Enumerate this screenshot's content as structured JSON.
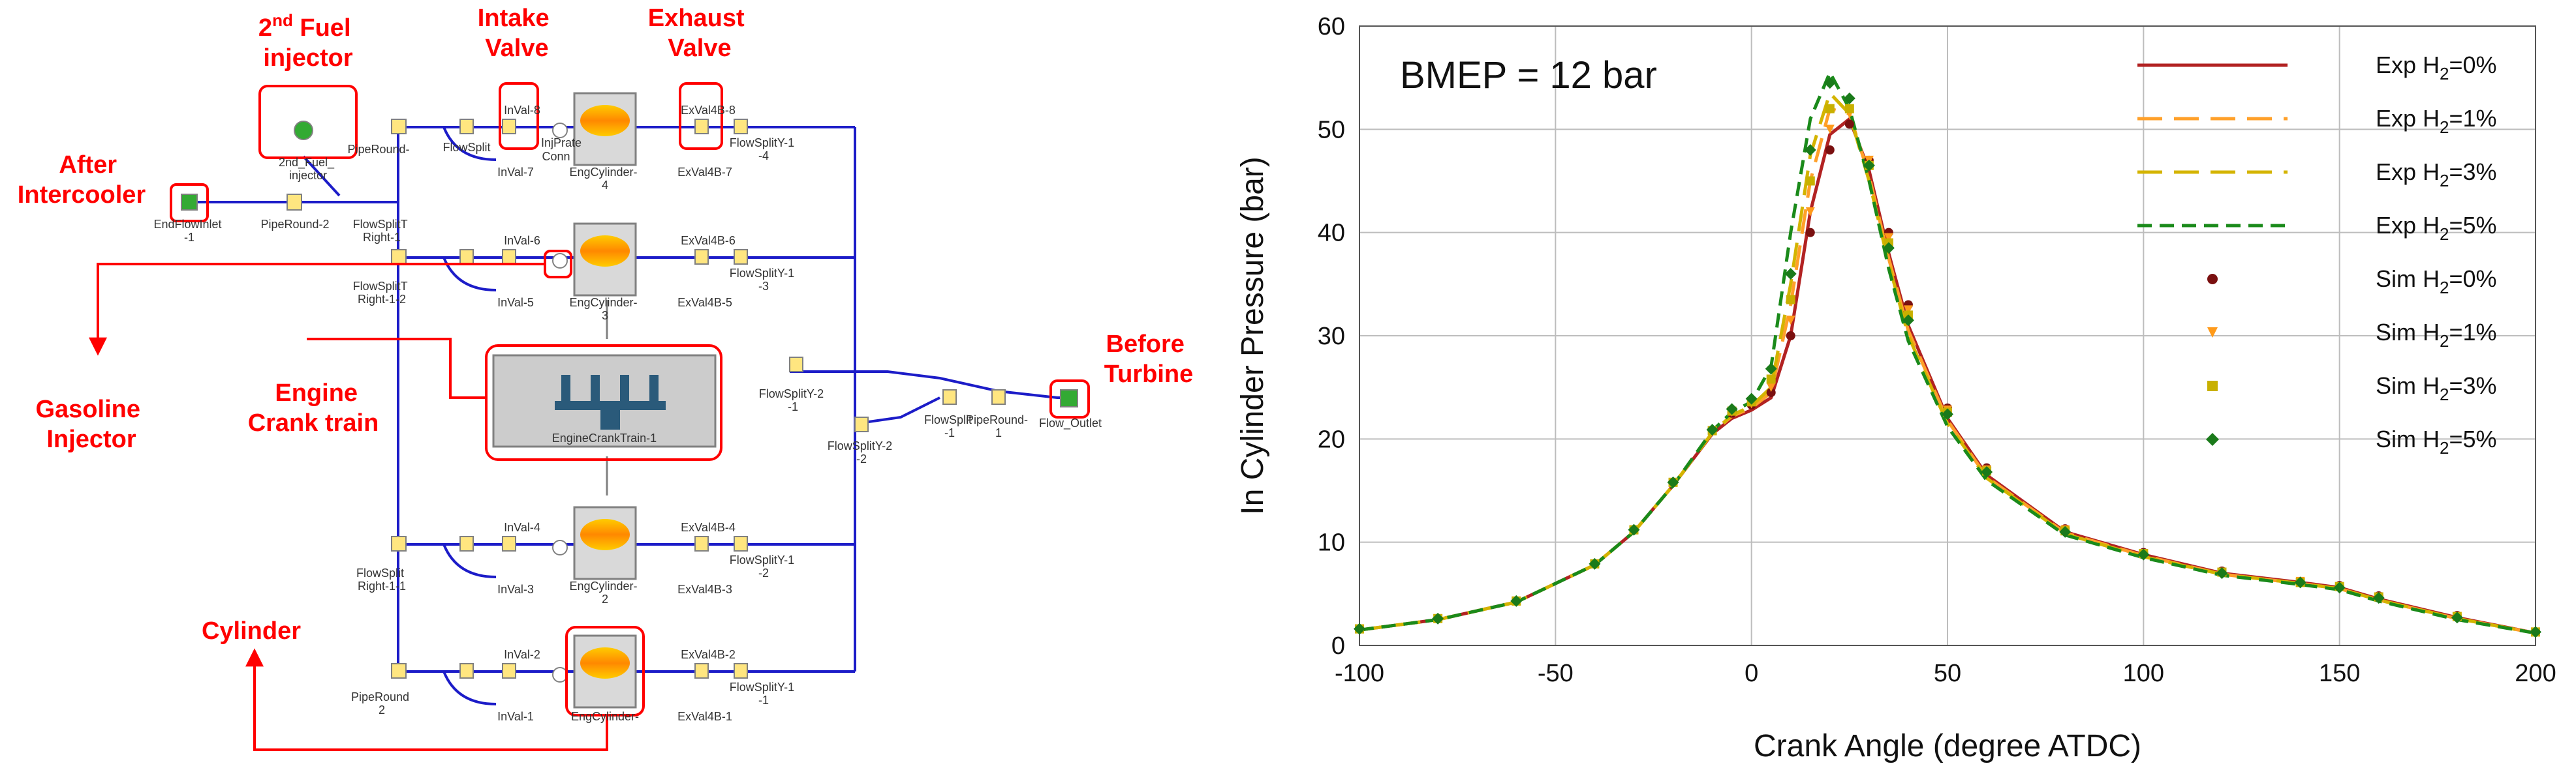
{
  "diagram": {
    "callouts": {
      "fuel_injector_2nd": [
        "2",
        "nd",
        " Fuel",
        "injector"
      ],
      "intake_valve": [
        "Intake",
        "Valve"
      ],
      "exhaust_valve": [
        "Exhaust",
        "Valve"
      ],
      "after_intercooler": [
        "After",
        "Intercooler"
      ],
      "gasoline_injector": [
        "Gasoline",
        "Injector"
      ],
      "engine_crank_train": [
        "Engine",
        "Crank train"
      ],
      "before_turbine": [
        "Before",
        "Turbine"
      ],
      "cylinder": "Cylinder"
    },
    "node_labels": {
      "fuel_injector_box": [
        "2nd_Fuel_",
        "injector"
      ],
      "end_flow_inlet": [
        "EndFlowInlet",
        "-1"
      ],
      "pipe_round_2": "PipeRound-2",
      "pipe_round_top": "PipeRound-",
      "flow_split_t": [
        "FlowSplitT",
        "Right-1"
      ],
      "flow_split_right_1_2": [
        "FlowSplitT",
        "Right-1-2"
      ],
      "flow_split_right_1_1": [
        "FlowSplit",
        "Right-1-1"
      ],
      "pipe_round_bottom": [
        "PipeRound",
        "2"
      ],
      "flowsplit_row1": "FlowSplit",
      "inval_8": "InVal-8",
      "inval_7": "InVal-7",
      "injprate_1": "InjPrate",
      "conn_1": "Conn",
      "engcyl_1": [
        "EngCylinder-",
        "4"
      ],
      "exval4b_8": "ExVal4B-8",
      "exval4b_7": "ExVal4B-7",
      "flowsplity_1_top": [
        "FlowSplitY-1",
        "-4"
      ],
      "inval_6": "InVal-6",
      "inval_5": "InVal-5",
      "engcyl_2": [
        "EngCylinder-",
        "3"
      ],
      "exval4b_6": "ExVal4B-6",
      "exval4b_5": "ExVal4B-5",
      "flowsplity_1_row2": [
        "FlowSplitY-1",
        "-3"
      ],
      "crank_train": "EngineCrankTrain-1",
      "flowsplity_2_a": [
        "FlowSplitY-2",
        "-1"
      ],
      "flowsplity_2_b": [
        "FlowSplitY-2",
        "-2"
      ],
      "flowsplit_merge": [
        "FlowSplit",
        "-1"
      ],
      "pipe_round_out": [
        "PipeRound-",
        "1"
      ],
      "endflow_outlet": "Flow_Outlet",
      "inval_4": "InVal-4",
      "inval_3": "InVal-3",
      "engcyl_3": [
        "EngCylinder-",
        "2"
      ],
      "exval4b_4": "ExVal4B-4",
      "exval4b_3": "ExVal4B-3",
      "flowsplity_1_row3": [
        "FlowSplitY-1",
        "-2"
      ],
      "inval_2": "InVal-2",
      "inval_1": "InVal-1",
      "engcyl_4": "EngCylinder-",
      "exval4b_2": "ExVal4B-2",
      "exval4b_1": "ExVal4B-1",
      "flowsplity_1_row4": [
        "FlowSplitY-1",
        "-1"
      ]
    },
    "colors": {
      "callout": "#ff0000",
      "connector": "#1c1cc8",
      "node_border": "#808080"
    }
  },
  "chart_data": {
    "type": "line",
    "annotation": "BMEP = 12 bar",
    "xlabel": "Crank Angle (degree ATDC)",
    "ylabel": "In Cylinder Pressure (bar)",
    "xlim": [
      -100,
      200
    ],
    "ylim": [
      0,
      60
    ],
    "xticks": [
      -100,
      -50,
      0,
      50,
      100,
      150,
      200
    ],
    "yticks": [
      0,
      10,
      20,
      30,
      40,
      50,
      60
    ],
    "grid": true,
    "legend_position": "top-right",
    "series": [
      {
        "name": "Exp H2=0%",
        "legend": [
          "Exp H",
          "2",
          "=0%"
        ],
        "kind": "line",
        "dash": "solid",
        "color": "#b22222",
        "x": [
          -100,
          -80,
          -60,
          -40,
          -30,
          -20,
          -10,
          -5,
          0,
          5,
          10,
          15,
          20,
          25,
          30,
          35,
          40,
          50,
          60,
          80,
          100,
          120,
          140,
          150,
          160,
          180,
          200
        ],
        "y": [
          1.5,
          2.5,
          4.2,
          7.8,
          11.0,
          15.5,
          20.5,
          22.0,
          22.8,
          24.0,
          30.0,
          42.0,
          49.5,
          51.0,
          46.0,
          38.0,
          31.0,
          22.0,
          16.5,
          11.0,
          8.8,
          7.0,
          6.1,
          5.6,
          4.5,
          2.7,
          1.2
        ]
      },
      {
        "name": "Exp H2=1%",
        "legend": [
          "Exp H",
          "2",
          "=1%"
        ],
        "kind": "line",
        "dash": "long",
        "color": "#ffa02a",
        "x": [
          -100,
          -80,
          -60,
          -40,
          -30,
          -20,
          -10,
          -5,
          0,
          5,
          10,
          15,
          20,
          25,
          30,
          35,
          40,
          50,
          60,
          80,
          100,
          120,
          140,
          150,
          160,
          180,
          200
        ],
        "y": [
          1.5,
          2.5,
          4.2,
          7.8,
          11.0,
          15.5,
          20.6,
          22.2,
          23.0,
          24.5,
          33.0,
          45.0,
          52.0,
          51.5,
          45.5,
          37.5,
          30.5,
          21.8,
          16.3,
          10.9,
          8.7,
          6.9,
          6.0,
          5.5,
          4.4,
          2.6,
          1.2
        ]
      },
      {
        "name": "Exp H2=3%",
        "legend": [
          "Exp H",
          "2",
          "=3%"
        ],
        "kind": "line",
        "dash": "long",
        "color": "#d4b400",
        "x": [
          -100,
          -80,
          -60,
          -40,
          -30,
          -20,
          -10,
          -5,
          0,
          5,
          10,
          15,
          20,
          25,
          30,
          35,
          40,
          50,
          60,
          80,
          100,
          120,
          140,
          150,
          160,
          180,
          200
        ],
        "y": [
          1.5,
          2.5,
          4.2,
          7.8,
          11.0,
          15.5,
          20.6,
          22.3,
          23.2,
          25.0,
          35.0,
          47.5,
          53.5,
          51.5,
          45.0,
          37.0,
          30.0,
          21.5,
          16.2,
          10.8,
          8.6,
          6.9,
          6.0,
          5.5,
          4.4,
          2.6,
          1.2
        ]
      },
      {
        "name": "Exp H2=5%",
        "legend": [
          "Exp H",
          "2",
          "=5%"
        ],
        "kind": "line",
        "dash": "medium",
        "color": "#1a8a1a",
        "x": [
          -100,
          -80,
          -60,
          -40,
          -30,
          -20,
          -10,
          -5,
          0,
          5,
          10,
          15,
          20,
          25,
          30,
          35,
          40,
          50,
          60,
          80,
          100,
          120,
          140,
          150,
          160,
          180,
          200
        ],
        "y": [
          1.5,
          2.5,
          4.2,
          7.8,
          11.0,
          15.5,
          20.8,
          22.6,
          23.6,
          27.0,
          40.0,
          51.0,
          55.5,
          52.0,
          45.0,
          36.5,
          29.5,
          21.2,
          16.0,
          10.7,
          8.5,
          6.8,
          5.9,
          5.4,
          4.3,
          2.5,
          1.2
        ]
      },
      {
        "name": "Sim H2=0%",
        "legend": [
          "Sim H",
          "2",
          "=0%"
        ],
        "kind": "marker",
        "marker": "circle",
        "color": "#7a1010",
        "x": [
          -100,
          -80,
          -60,
          -40,
          -30,
          -20,
          -10,
          -5,
          0,
          5,
          10,
          15,
          20,
          25,
          30,
          35,
          40,
          50,
          60,
          80,
          100,
          120,
          140,
          150,
          160,
          180,
          200
        ],
        "y": [
          1.6,
          2.6,
          4.3,
          7.9,
          11.2,
          15.8,
          20.8,
          22.5,
          23.3,
          24.5,
          30.0,
          40.0,
          48.0,
          50.5,
          47.0,
          40.0,
          33.0,
          23.0,
          17.2,
          11.3,
          9.0,
          7.2,
          6.2,
          5.8,
          4.8,
          2.9,
          1.3
        ]
      },
      {
        "name": "Sim H2=1%",
        "legend": [
          "Sim H",
          "2",
          "=1%"
        ],
        "kind": "marker",
        "marker": "triangle",
        "color": "#ff9a1a",
        "x": [
          -100,
          -80,
          -60,
          -40,
          -30,
          -20,
          -10,
          -5,
          0,
          5,
          10,
          15,
          20,
          25,
          30,
          35,
          40,
          50,
          60,
          80,
          100,
          120,
          140,
          150,
          160,
          180,
          200
        ],
        "y": [
          1.6,
          2.6,
          4.3,
          7.9,
          11.2,
          15.8,
          20.8,
          22.6,
          23.4,
          25.0,
          31.5,
          42.0,
          50.0,
          51.5,
          47.0,
          39.5,
          32.5,
          22.8,
          17.0,
          11.2,
          8.9,
          7.1,
          6.2,
          5.7,
          4.7,
          2.8,
          1.3
        ]
      },
      {
        "name": "Sim H2=3%",
        "legend": [
          "Sim H",
          "2",
          "=3%"
        ],
        "kind": "marker",
        "marker": "square",
        "color": "#c8b000",
        "x": [
          -100,
          -80,
          -60,
          -40,
          -30,
          -20,
          -10,
          -5,
          0,
          5,
          10,
          15,
          20,
          25,
          30,
          35,
          40,
          50,
          60,
          80,
          100,
          120,
          140,
          150,
          160,
          180,
          200
        ],
        "y": [
          1.6,
          2.6,
          4.3,
          7.9,
          11.2,
          15.8,
          20.8,
          22.7,
          23.6,
          25.8,
          33.5,
          45.0,
          52.0,
          52.0,
          46.5,
          39.0,
          32.0,
          22.6,
          16.9,
          11.1,
          8.9,
          7.1,
          6.1,
          5.7,
          4.7,
          2.8,
          1.3
        ]
      },
      {
        "name": "Sim H2=5%",
        "legend": [
          "Sim H",
          "2",
          "=5%"
        ],
        "kind": "marker",
        "marker": "diamond",
        "color": "#1a7a1a",
        "x": [
          -100,
          -80,
          -60,
          -40,
          -30,
          -20,
          -10,
          -5,
          0,
          5,
          10,
          15,
          20,
          25,
          30,
          35,
          40,
          50,
          60,
          80,
          100,
          120,
          140,
          150,
          160,
          180,
          200
        ],
        "y": [
          1.6,
          2.6,
          4.3,
          7.9,
          11.2,
          15.8,
          20.9,
          22.9,
          23.9,
          26.8,
          36.0,
          48.0,
          54.5,
          53.0,
          46.5,
          38.5,
          31.5,
          22.4,
          16.8,
          11.0,
          8.8,
          7.0,
          6.1,
          5.6,
          4.6,
          2.7,
          1.3
        ]
      }
    ]
  }
}
